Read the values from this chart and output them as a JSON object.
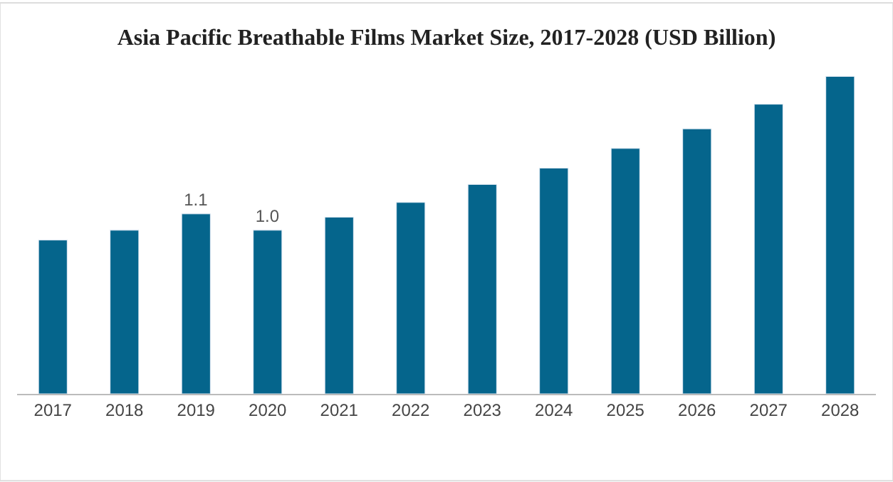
{
  "chart_data": {
    "type": "bar",
    "title": "Asia Pacific Breathable Films Market Size, 2017-2028 (USD Billion)",
    "categories": [
      "2017",
      "2018",
      "2019",
      "2020",
      "2021",
      "2022",
      "2023",
      "2024",
      "2025",
      "2026",
      "2027",
      "2028"
    ],
    "values": [
      0.94,
      1.0,
      1.1,
      1.0,
      1.08,
      1.17,
      1.28,
      1.38,
      1.5,
      1.62,
      1.77,
      1.94
    ],
    "value_labels": [
      null,
      null,
      "1.1",
      "1.0",
      null,
      null,
      null,
      null,
      null,
      null,
      null,
      null
    ],
    "color": "#05658c",
    "tick_labels": "x"
  }
}
